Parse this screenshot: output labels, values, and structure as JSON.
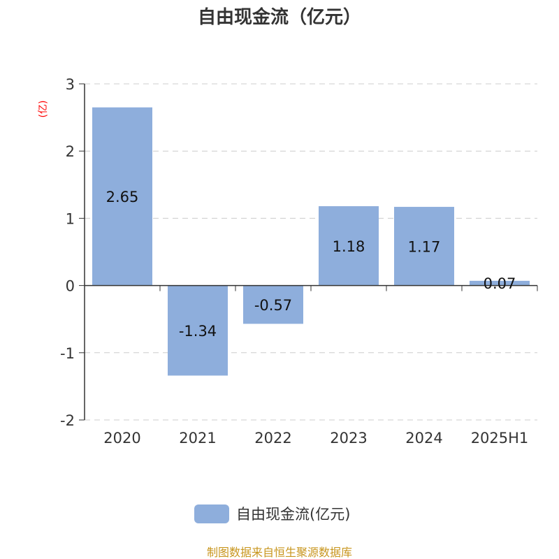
{
  "chart_data": {
    "type": "bar",
    "title": "自由现金流（亿元）",
    "ylabel": "(亿)",
    "categories": [
      "2020",
      "2021",
      "2022",
      "2023",
      "2024",
      "2025H1"
    ],
    "series": [
      {
        "name": "自由现金流(亿元)",
        "values": [
          2.65,
          -1.34,
          -0.57,
          1.18,
          1.17,
          0.07
        ],
        "color": "#8eaedc"
      }
    ],
    "data_labels": [
      "2.65",
      "-1.34",
      "-0.57",
      "1.18",
      "1.17",
      "0.07"
    ],
    "yticks": [
      "3",
      "2",
      "1",
      "0",
      "-1",
      "-2"
    ],
    "ylim": [
      -2,
      3
    ],
    "grid": true,
    "legend": "bottom"
  },
  "footer": "制图数据来自恒生聚源数据库",
  "colors": {
    "ylabel": "#ff0000",
    "footer": "#c8961e"
  }
}
